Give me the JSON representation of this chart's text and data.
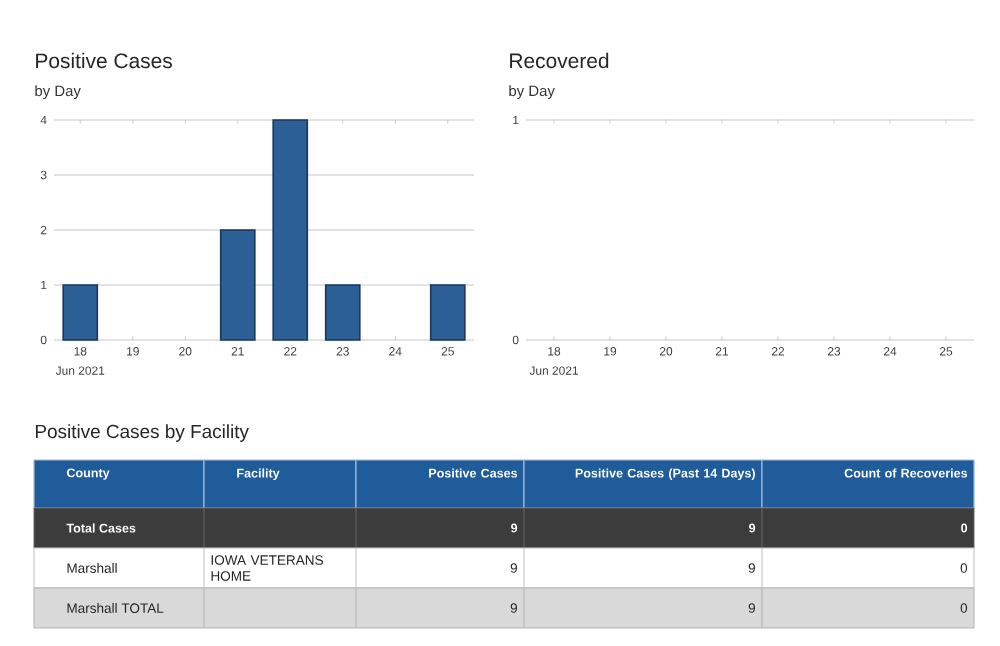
{
  "chart_data": [
    {
      "type": "bar",
      "title": "Positive Cases",
      "subtitle": "by Day",
      "categories": [
        "18",
        "19",
        "20",
        "21",
        "22",
        "23",
        "24",
        "25"
      ],
      "xlabel": "Jun 2021",
      "values": [
        1,
        0,
        0,
        2,
        4,
        1,
        0,
        1
      ],
      "color": "#2b5f95",
      "ylim": [
        0,
        4
      ],
      "yticks": [
        0,
        1,
        2,
        3,
        4
      ],
      "grid": "y"
    },
    {
      "type": "bar",
      "title": "Recovered",
      "subtitle": "by Day",
      "categories": [
        "18",
        "19",
        "20",
        "21",
        "22",
        "23",
        "24",
        "25"
      ],
      "xlabel": "Jun 2021",
      "values": [
        0,
        0,
        0,
        0,
        0,
        0,
        0,
        0
      ],
      "color": "#2b5f95",
      "ylim": [
        0,
        1
      ],
      "yticks": [
        0,
        1
      ],
      "grid": "y"
    },
    {
      "type": "other",
      "title": "Positive Cases by Facility",
      "ylabel": "County",
      "y2label": "Facility",
      "categories": [
        "Positive Cases",
        "Positive Cases (Past 14 Days)",
        "Count of Recoveries"
      ],
      "y_categories": [
        "Total Cases",
        "Marshall",
        "Marshall TOTAL"
      ],
      "y2_categories": [
        null,
        "IOWA VETERANS HOME",
        null
      ],
      "cell_labels": [
        [
          "9",
          "9",
          "0"
        ],
        [
          "9",
          "9",
          "0"
        ],
        [
          "9",
          "9",
          "0"
        ]
      ]
    }
  ]
}
